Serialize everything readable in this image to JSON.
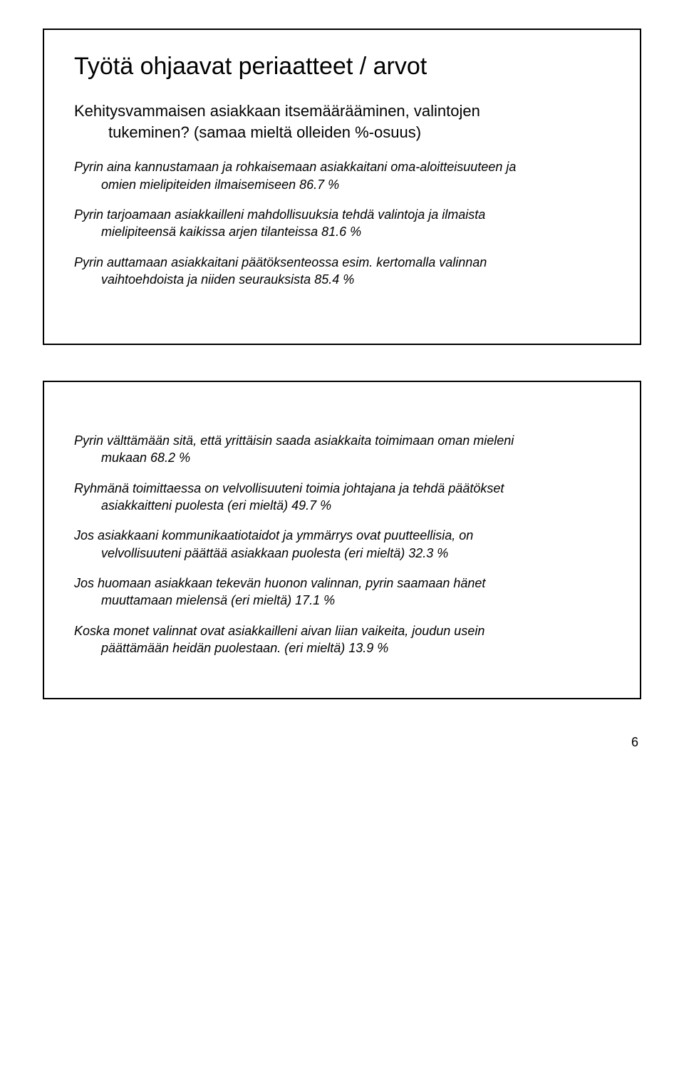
{
  "slide1": {
    "title": "Työtä ohjaavat periaatteet / arvot",
    "subtitle_line1": "Kehitysvammaisen asiakkaan itsemäärääminen, valintojen",
    "subtitle_line2": "tukeminen?",
    "subtitle_note": "(samaa mieltä olleiden %-osuus)",
    "items": [
      {
        "line1": "Pyrin aina kannustamaan ja rohkaisemaan asiakkaitani oma-aloitteisuuteen ja",
        "line2": "omien mielipiteiden ilmaisemiseen   86.7 %"
      },
      {
        "line1": "Pyrin tarjoamaan asiakkailleni mahdollisuuksia tehdä valintoja ja ilmaista",
        "line2": "mielipiteensä kaikissa arjen tilanteissa  81.6 %"
      },
      {
        "line1": "Pyrin auttamaan asiakkaitani päätöksenteossa esim. kertomalla valinnan",
        "line2": "vaihtoehdoista ja niiden seurauksista  85.4 %"
      }
    ]
  },
  "slide2": {
    "items": [
      {
        "line1": "Pyrin välttämään sitä, että yrittäisin saada asiakkaita toimimaan oman mieleni",
        "line2": "mukaan 68.2 %"
      },
      {
        "line1": "Ryhmänä toimittaessa on velvollisuuteni toimia johtajana ja tehdä päätökset",
        "line2": "asiakkaitteni puolesta (eri mieltä) 49.7 %"
      },
      {
        "line1": "Jos asiakkaani kommunikaatiotaidot ja ymmärrys ovat puutteellisia, on",
        "line2": "velvollisuuteni päättää asiakkaan puolesta (eri mieltä) 32.3 %"
      },
      {
        "line1": "Jos huomaan asiakkaan tekevän huonon valinnan, pyrin saamaan hänet",
        "line2": "muuttamaan mielensä (eri mieltä)  17.1 %"
      },
      {
        "line1": "Koska monet valinnat ovat asiakkailleni aivan liian vaikeita, joudun usein",
        "line2": "päättämään heidän puolestaan. (eri mieltä) 13.9 %"
      }
    ]
  },
  "page_number": "6"
}
